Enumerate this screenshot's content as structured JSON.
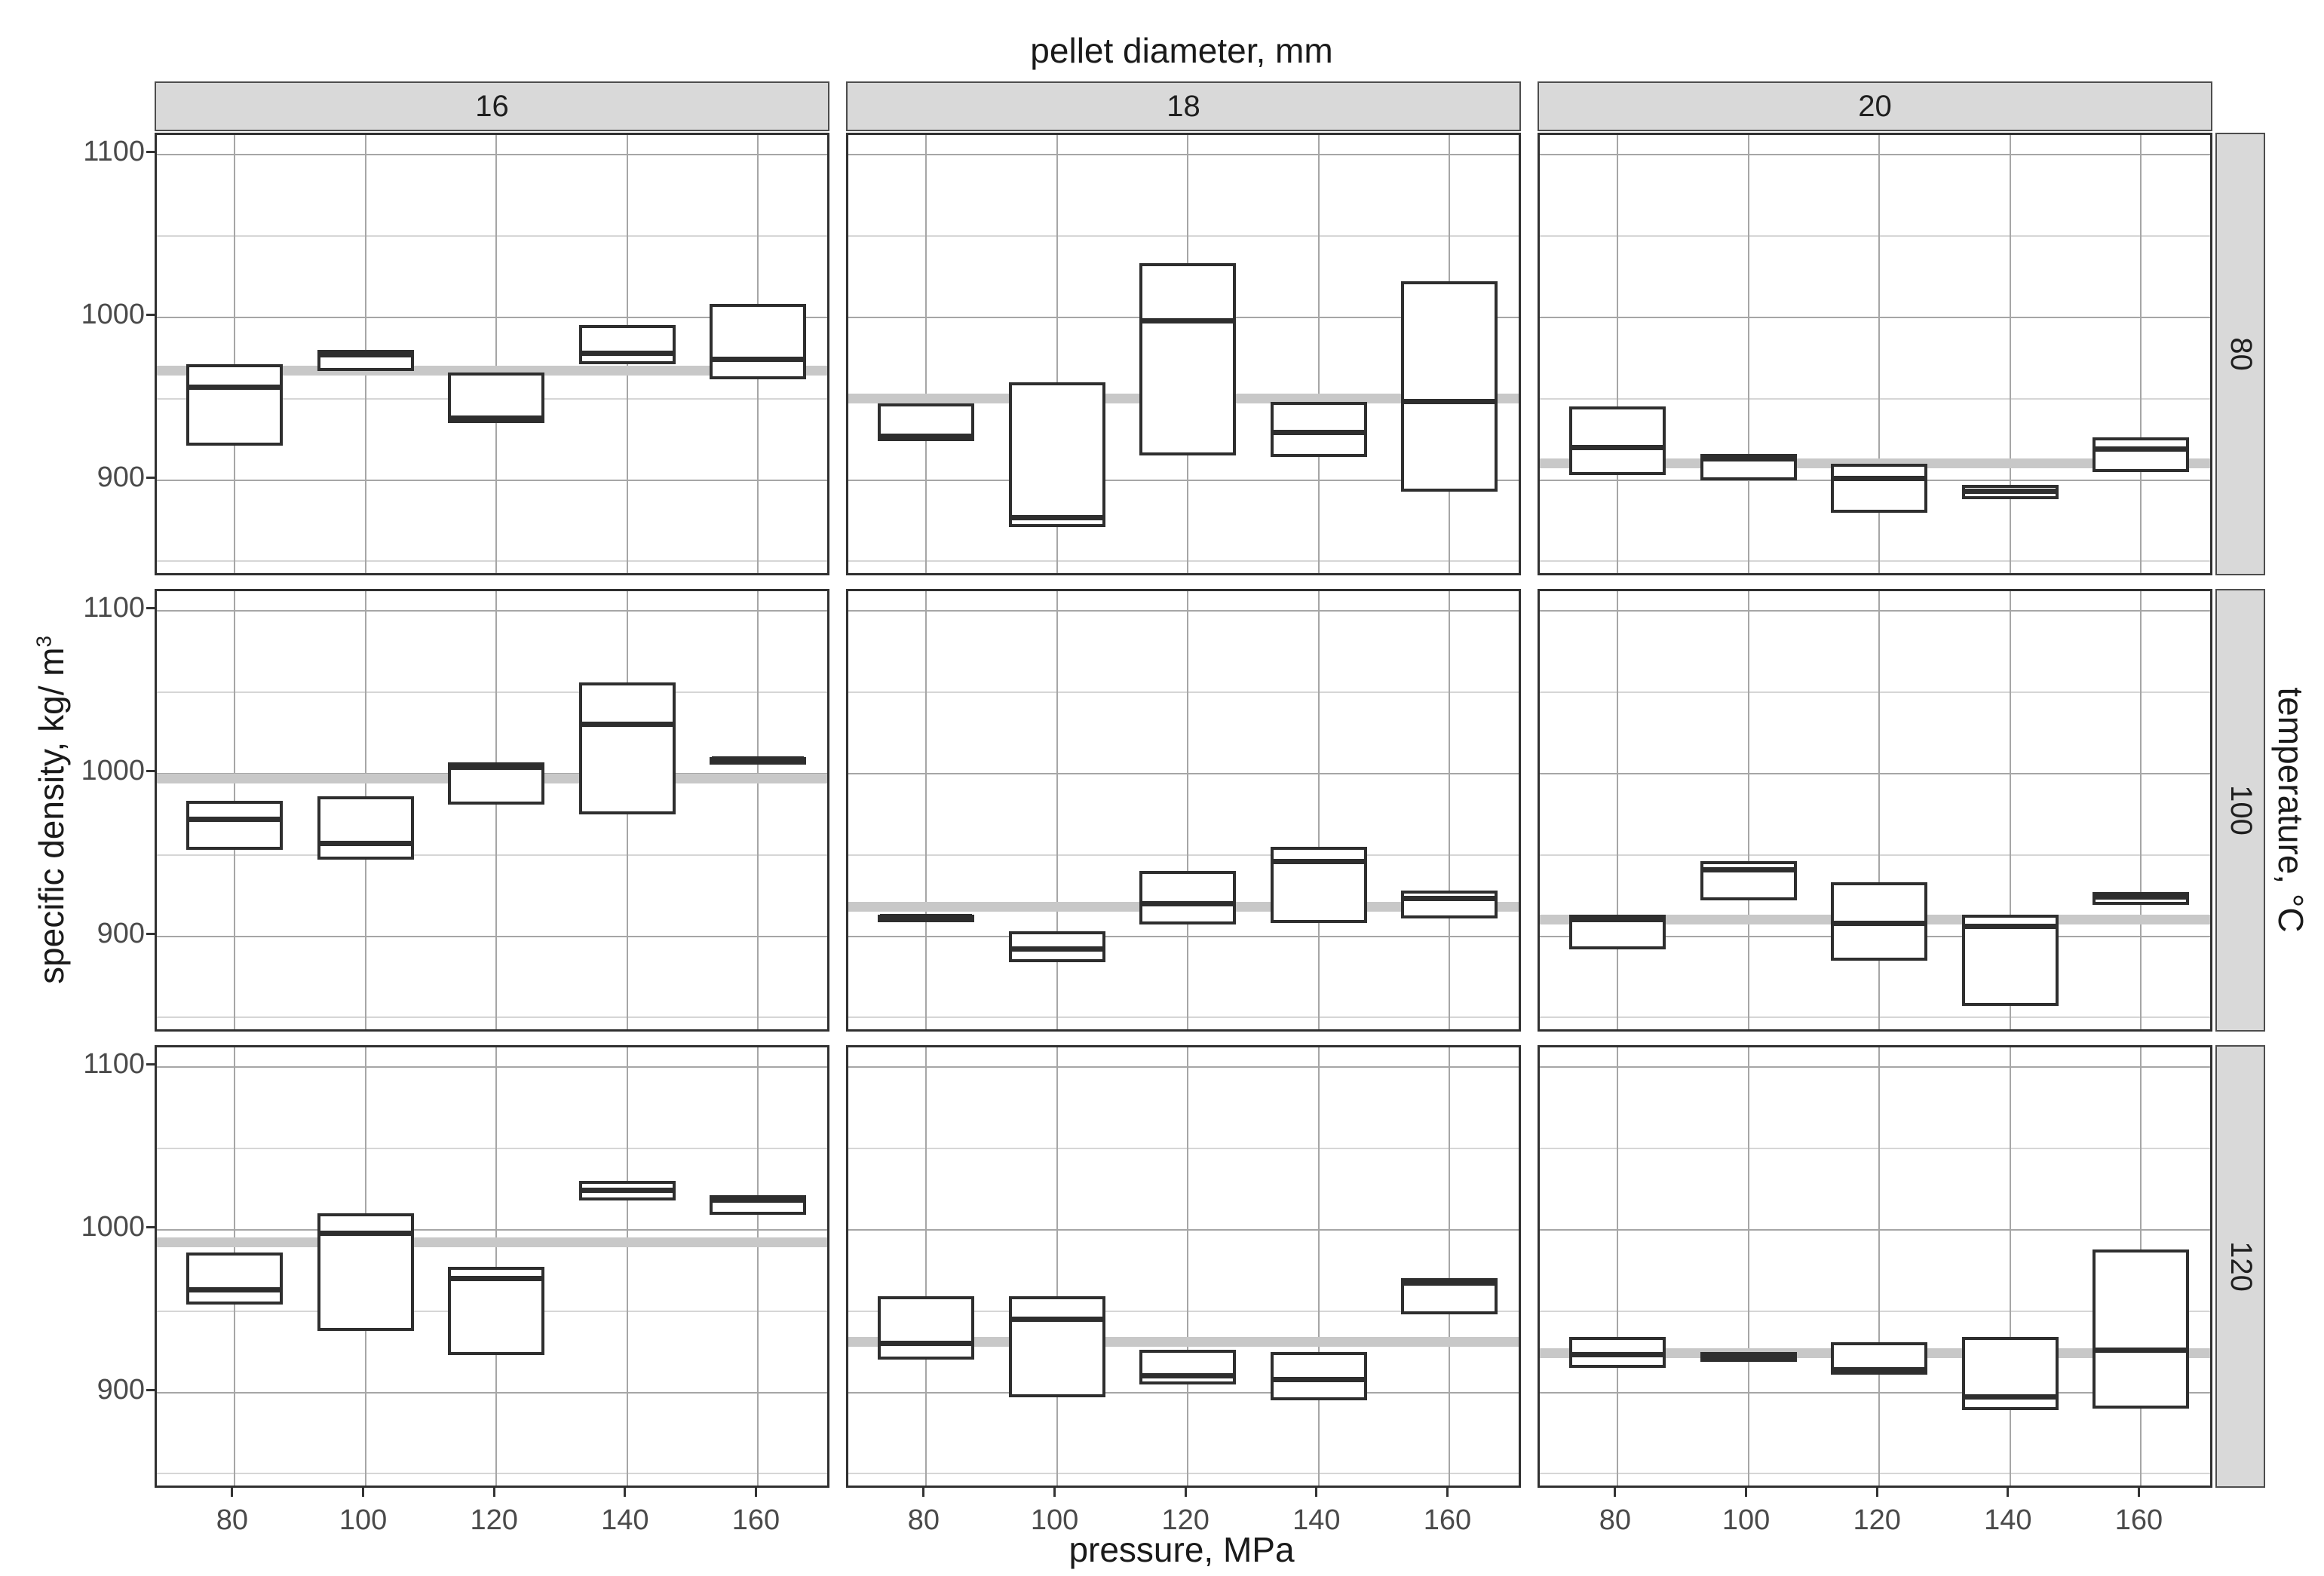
{
  "title": "pellet diameter, mm",
  "axes": {
    "x_title": "pressure, MPa",
    "y_title": "specific density, kg/ m",
    "y_title_sup": "3",
    "right_title": "temperature, °C",
    "y_tick_labels": [
      "1100",
      "1000",
      "900"
    ],
    "x_tick_labels": [
      "80",
      "100",
      "120",
      "140",
      "160"
    ]
  },
  "facet_strips": {
    "columns": [
      "16",
      "18",
      "20"
    ],
    "rows": [
      "80",
      "100",
      "120"
    ]
  },
  "colors": {
    "strip_bg": "#d9d9d9",
    "panel_border": "#303030",
    "grid_major": "#a6a6a6",
    "grid_minor": "#d6d6d6",
    "reference_line": "#c8c8c8",
    "box_border": "#2e2e2e",
    "box_fill": "#ffffff",
    "tick_text": "#4a4a4a",
    "title_text": "#1a1a1a"
  },
  "chart_data": {
    "type": "boxplot",
    "facet": {
      "col_variable": "pellet diameter, mm",
      "row_variable": "temperature, °C"
    },
    "x_variable": "pressure, MPa",
    "y_variable": "specific density, kg/m3",
    "x_values": [
      80,
      100,
      120,
      140,
      160
    ],
    "ylim": [
      840,
      1112
    ],
    "y_major_gridlines": [
      900,
      1000,
      1100
    ],
    "y_minor_gridlines": [
      850,
      950,
      1050
    ],
    "grid": "on",
    "legend": "none",
    "panels": [
      {
        "diameter": "16",
        "temperature": "80",
        "reference_line": 967,
        "boxes": [
          {
            "x": 80,
            "q1": 921,
            "median": 957,
            "q3": 971
          },
          {
            "x": 100,
            "q1": 967,
            "median": 977,
            "q3": 980
          },
          {
            "x": 120,
            "q1": 935,
            "median": 937,
            "q3": 966
          },
          {
            "x": 140,
            "q1": 971,
            "median": 978,
            "q3": 995
          },
          {
            "x": 160,
            "q1": 962,
            "median": 974,
            "q3": 1008
          }
        ]
      },
      {
        "diameter": "18",
        "temperature": "80",
        "reference_line": 950,
        "boxes": [
          {
            "x": 80,
            "q1": 924,
            "median": 926,
            "q3": 947
          },
          {
            "x": 100,
            "q1": 871,
            "median": 877,
            "q3": 960
          },
          {
            "x": 120,
            "q1": 915,
            "median": 998,
            "q3": 1033
          },
          {
            "x": 140,
            "q1": 914,
            "median": 929,
            "q3": 948
          },
          {
            "x": 160,
            "q1": 893,
            "median": 948,
            "q3": 1022
          }
        ]
      },
      {
        "diameter": "20",
        "temperature": "80",
        "reference_line": 910,
        "boxes": [
          {
            "x": 80,
            "q1": 903,
            "median": 920,
            "q3": 945
          },
          {
            "x": 100,
            "q1": 900,
            "median": 913,
            "q3": 916
          },
          {
            "x": 120,
            "q1": 880,
            "median": 901,
            "q3": 910
          },
          {
            "x": 140,
            "q1": 888,
            "median": 893,
            "q3": 897
          },
          {
            "x": 160,
            "q1": 905,
            "median": 919,
            "q3": 926
          }
        ]
      },
      {
        "diameter": "16",
        "temperature": "100",
        "reference_line": 997,
        "boxes": [
          {
            "x": 80,
            "q1": 953,
            "median": 972,
            "q3": 983
          },
          {
            "x": 100,
            "q1": 947,
            "median": 957,
            "q3": 986
          },
          {
            "x": 120,
            "q1": 981,
            "median": 1004,
            "q3": 1007
          },
          {
            "x": 140,
            "q1": 975,
            "median": 1030,
            "q3": 1056
          },
          {
            "x": 160,
            "q1": 1006,
            "median": 1008,
            "q3": 1010
          }
        ]
      },
      {
        "diameter": "18",
        "temperature": "100",
        "reference_line": 918,
        "boxes": [
          {
            "x": 80,
            "q1": 909,
            "median": 911,
            "q3": 913
          },
          {
            "x": 100,
            "q1": 884,
            "median": 892,
            "q3": 903
          },
          {
            "x": 120,
            "q1": 907,
            "median": 920,
            "q3": 940
          },
          {
            "x": 140,
            "q1": 908,
            "median": 946,
            "q3": 955
          },
          {
            "x": 160,
            "q1": 911,
            "median": 923,
            "q3": 928
          }
        ]
      },
      {
        "diameter": "20",
        "temperature": "100",
        "reference_line": 910,
        "boxes": [
          {
            "x": 80,
            "q1": 892,
            "median": 911,
            "q3": 913
          },
          {
            "x": 100,
            "q1": 922,
            "median": 941,
            "q3": 946
          },
          {
            "x": 120,
            "q1": 885,
            "median": 908,
            "q3": 933
          },
          {
            "x": 140,
            "q1": 857,
            "median": 906,
            "q3": 913
          },
          {
            "x": 160,
            "q1": 919,
            "median": 924,
            "q3": 927
          }
        ]
      },
      {
        "diameter": "16",
        "temperature": "120",
        "reference_line": 992,
        "boxes": [
          {
            "x": 80,
            "q1": 954,
            "median": 963,
            "q3": 986
          },
          {
            "x": 100,
            "q1": 938,
            "median": 998,
            "q3": 1010
          },
          {
            "x": 120,
            "q1": 923,
            "median": 970,
            "q3": 977
          },
          {
            "x": 140,
            "q1": 1018,
            "median": 1024,
            "q3": 1030
          },
          {
            "x": 160,
            "q1": 1009,
            "median": 1018,
            "q3": 1021
          }
        ]
      },
      {
        "diameter": "18",
        "temperature": "120",
        "reference_line": 931,
        "boxes": [
          {
            "x": 80,
            "q1": 920,
            "median": 930,
            "q3": 959
          },
          {
            "x": 100,
            "q1": 897,
            "median": 945,
            "q3": 959
          },
          {
            "x": 120,
            "q1": 905,
            "median": 910,
            "q3": 926
          },
          {
            "x": 140,
            "q1": 895,
            "median": 908,
            "q3": 925
          },
          {
            "x": 160,
            "q1": 948,
            "median": 968,
            "q3": 970
          }
        ]
      },
      {
        "diameter": "20",
        "temperature": "120",
        "reference_line": 924,
        "boxes": [
          {
            "x": 80,
            "q1": 915,
            "median": 923,
            "q3": 934
          },
          {
            "x": 100,
            "q1": 919,
            "median": 922,
            "q3": 925
          },
          {
            "x": 120,
            "q1": 911,
            "median": 913,
            "q3": 931
          },
          {
            "x": 140,
            "q1": 889,
            "median": 897,
            "q3": 934
          },
          {
            "x": 160,
            "q1": 890,
            "median": 926,
            "q3": 988
          }
        ]
      }
    ]
  }
}
